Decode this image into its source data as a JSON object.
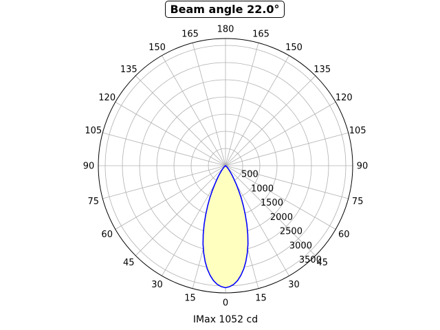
{
  "chart_data": {
    "type": "polar-line",
    "title": "Beam angle 22.0°",
    "xlabel": "IMax 1052 cd",
    "angle_tick_labels": {
      "right": [
        "0",
        "15",
        "30",
        "45",
        "60",
        "75",
        "90",
        "105",
        "120",
        "135",
        "150",
        "165",
        "180"
      ],
      "left": [
        "15",
        "30",
        "45",
        "60",
        "75",
        "90",
        "105",
        "120",
        "135",
        "150",
        "165"
      ]
    },
    "r_tick_labels": [
      "500",
      "1000",
      "1500",
      "2000",
      "2500",
      "3000",
      "3500"
    ],
    "r_ticks": [
      500,
      1000,
      1500,
      2000,
      2500,
      3000,
      3500
    ],
    "rlim": [
      0,
      3700
    ],
    "angle_zero": "bottom",
    "grid": true,
    "series": [
      {
        "color": "#0000ff",
        "fill": "#ffffc0",
        "angle_deg": [
          0,
          2,
          4,
          6,
          8,
          10,
          12,
          14,
          16,
          18,
          20,
          22,
          24,
          26,
          28,
          30,
          32,
          34,
          36,
          38,
          40,
          45,
          50,
          60
        ],
        "candela": [
          3550,
          3520,
          3460,
          3360,
          3220,
          3050,
          2850,
          2620,
          2370,
          2100,
          1820,
          1540,
          1280,
          1040,
          820,
          630,
          480,
          360,
          270,
          200,
          150,
          80,
          30,
          0
        ]
      }
    ]
  }
}
